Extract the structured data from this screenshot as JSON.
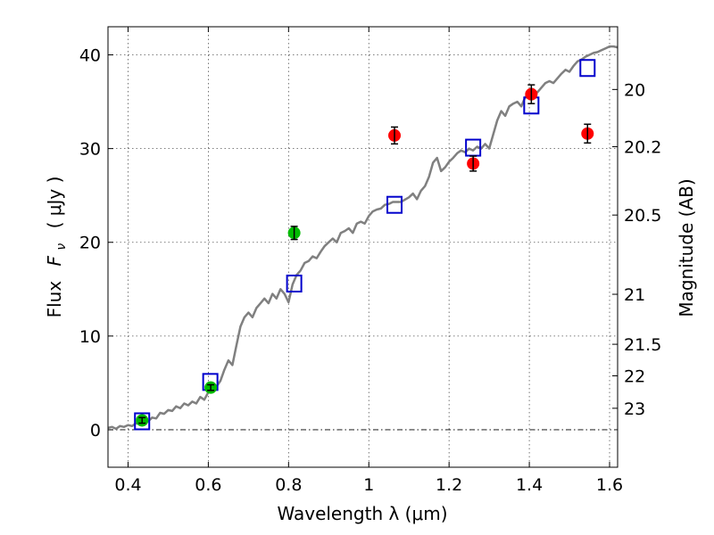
{
  "chart_data": {
    "type": "scatter",
    "xlabel": "Wavelength  λ (μm)",
    "ylabel_text": "Flux",
    "ylabel_symbol": "F",
    "ylabel_symbol_sub": "ν",
    "ylabel_unit": "( μJy )",
    "y2label": "Magnitude (AB)",
    "xlim": [
      0.35,
      1.62
    ],
    "ylim": [
      -4,
      43
    ],
    "grid": true,
    "x_ticks": [
      {
        "value": 0.4,
        "label": "0.4"
      },
      {
        "value": 0.6,
        "label": "0.6"
      },
      {
        "value": 0.8,
        "label": "0.8"
      },
      {
        "value": 1.0,
        "label": "1"
      },
      {
        "value": 1.2,
        "label": "1.2"
      },
      {
        "value": 1.4,
        "label": "1.4"
      },
      {
        "value": 1.6,
        "label": "1.6"
      }
    ],
    "y_ticks": [
      {
        "value": 0,
        "label": "0"
      },
      {
        "value": 10,
        "label": "10"
      },
      {
        "value": 20,
        "label": "20"
      },
      {
        "value": 30,
        "label": "30"
      },
      {
        "value": 40,
        "label": "40"
      }
    ],
    "y2_ticks": [
      {
        "mag": 20,
        "label": "20"
      },
      {
        "mag": 20.2,
        "label": "20.2"
      },
      {
        "mag": 20.5,
        "label": "20.5"
      },
      {
        "mag": 21,
        "label": "21"
      },
      {
        "mag": 21.5,
        "label": "21.5"
      },
      {
        "mag": 22,
        "label": "22"
      },
      {
        "mag": 23,
        "label": "23"
      }
    ],
    "colors": {
      "model": "#808080",
      "model_points": "#0000cc",
      "optical": "#00bb00",
      "nir": "#ff0000",
      "errorbar": "#000000"
    },
    "series": [
      {
        "name": "model_spectrum",
        "kind": "line",
        "points": [
          [
            0.35,
            0.2
          ],
          [
            0.36,
            0.3
          ],
          [
            0.37,
            0.1
          ],
          [
            0.38,
            0.4
          ],
          [
            0.39,
            0.3
          ],
          [
            0.4,
            0.5
          ],
          [
            0.41,
            0.4
          ],
          [
            0.42,
            0.7
          ],
          [
            0.43,
            0.6
          ],
          [
            0.44,
            1.0
          ],
          [
            0.45,
            0.9
          ],
          [
            0.46,
            1.3
          ],
          [
            0.47,
            1.2
          ],
          [
            0.48,
            1.8
          ],
          [
            0.49,
            1.7
          ],
          [
            0.5,
            2.1
          ],
          [
            0.51,
            2.0
          ],
          [
            0.52,
            2.5
          ],
          [
            0.53,
            2.3
          ],
          [
            0.54,
            2.8
          ],
          [
            0.55,
            2.6
          ],
          [
            0.56,
            3.0
          ],
          [
            0.57,
            2.8
          ],
          [
            0.58,
            3.5
          ],
          [
            0.59,
            3.2
          ],
          [
            0.6,
            4.0
          ],
          [
            0.61,
            4.3
          ],
          [
            0.62,
            4.6
          ],
          [
            0.63,
            5.2
          ],
          [
            0.64,
            6.4
          ],
          [
            0.65,
            7.4
          ],
          [
            0.66,
            6.9
          ],
          [
            0.67,
            9.0
          ],
          [
            0.68,
            11.0
          ],
          [
            0.69,
            12.0
          ],
          [
            0.7,
            12.5
          ],
          [
            0.71,
            12.0
          ],
          [
            0.72,
            13.0
          ],
          [
            0.73,
            13.5
          ],
          [
            0.74,
            14.0
          ],
          [
            0.75,
            13.5
          ],
          [
            0.76,
            14.5
          ],
          [
            0.77,
            14.0
          ],
          [
            0.78,
            15.0
          ],
          [
            0.79,
            14.5
          ],
          [
            0.8,
            13.6
          ],
          [
            0.81,
            15.5
          ],
          [
            0.82,
            16.5
          ],
          [
            0.83,
            17.0
          ],
          [
            0.84,
            17.8
          ],
          [
            0.85,
            18.0
          ],
          [
            0.86,
            18.5
          ],
          [
            0.87,
            18.3
          ],
          [
            0.88,
            19.0
          ],
          [
            0.89,
            19.6
          ],
          [
            0.9,
            20.0
          ],
          [
            0.91,
            20.4
          ],
          [
            0.92,
            20.0
          ],
          [
            0.93,
            21.0
          ],
          [
            0.94,
            21.2
          ],
          [
            0.95,
            21.5
          ],
          [
            0.96,
            21.0
          ],
          [
            0.97,
            22.0
          ],
          [
            0.98,
            22.2
          ],
          [
            0.99,
            22.0
          ],
          [
            1.0,
            22.8
          ],
          [
            1.01,
            23.3
          ],
          [
            1.02,
            23.5
          ],
          [
            1.03,
            23.6
          ],
          [
            1.04,
            24.0
          ],
          [
            1.05,
            24.1
          ],
          [
            1.06,
            24.3
          ],
          [
            1.08,
            24.3
          ],
          [
            1.1,
            24.8
          ],
          [
            1.11,
            25.2
          ],
          [
            1.12,
            24.6
          ],
          [
            1.13,
            25.5
          ],
          [
            1.14,
            26.0
          ],
          [
            1.15,
            27.0
          ],
          [
            1.16,
            28.5
          ],
          [
            1.17,
            29.0
          ],
          [
            1.18,
            27.6
          ],
          [
            1.19,
            28.0
          ],
          [
            1.2,
            28.6
          ],
          [
            1.21,
            29.0
          ],
          [
            1.22,
            29.5
          ],
          [
            1.23,
            29.8
          ],
          [
            1.24,
            29.6
          ],
          [
            1.25,
            30.0
          ],
          [
            1.26,
            29.8
          ],
          [
            1.27,
            30.2
          ],
          [
            1.28,
            30.0
          ],
          [
            1.29,
            30.5
          ],
          [
            1.3,
            30.0
          ],
          [
            1.31,
            31.5
          ],
          [
            1.32,
            33.0
          ],
          [
            1.33,
            34.0
          ],
          [
            1.34,
            33.5
          ],
          [
            1.35,
            34.5
          ],
          [
            1.36,
            34.8
          ],
          [
            1.37,
            35.0
          ],
          [
            1.38,
            34.5
          ],
          [
            1.39,
            35.5
          ],
          [
            1.4,
            35.8
          ],
          [
            1.41,
            36.2
          ],
          [
            1.42,
            36.0
          ],
          [
            1.43,
            36.5
          ],
          [
            1.44,
            37.0
          ],
          [
            1.45,
            37.2
          ],
          [
            1.46,
            37.0
          ],
          [
            1.47,
            37.5
          ],
          [
            1.48,
            38.0
          ],
          [
            1.49,
            38.4
          ],
          [
            1.5,
            38.2
          ],
          [
            1.51,
            38.8
          ],
          [
            1.52,
            39.3
          ],
          [
            1.53,
            39.5
          ],
          [
            1.54,
            39.8
          ],
          [
            1.55,
            40.0
          ],
          [
            1.56,
            40.2
          ],
          [
            1.57,
            40.3
          ],
          [
            1.58,
            40.5
          ],
          [
            1.59,
            40.7
          ],
          [
            1.6,
            40.9
          ],
          [
            1.61,
            40.9
          ],
          [
            1.62,
            40.8
          ]
        ]
      },
      {
        "name": "model_photometry",
        "kind": "open_square",
        "points": [
          {
            "x": 0.435,
            "y": 0.9
          },
          {
            "x": 0.605,
            "y": 5.1
          },
          {
            "x": 0.814,
            "y": 15.6
          },
          {
            "x": 1.064,
            "y": 24.0
          },
          {
            "x": 1.26,
            "y": 30.1
          },
          {
            "x": 1.405,
            "y": 34.6
          },
          {
            "x": 1.545,
            "y": 38.6
          }
        ]
      },
      {
        "name": "observed_optical",
        "kind": "filled_circle",
        "points": [
          {
            "x": 0.435,
            "y": 1.0,
            "err": 0.3
          },
          {
            "x": 0.606,
            "y": 4.5,
            "err": 0.3
          },
          {
            "x": 0.814,
            "y": 21.0,
            "err": 0.7
          }
        ]
      },
      {
        "name": "observed_nir",
        "kind": "filled_circle",
        "points": [
          {
            "x": 1.064,
            "y": 31.4,
            "err": 0.9
          },
          {
            "x": 1.26,
            "y": 28.4,
            "err": 0.8
          },
          {
            "x": 1.405,
            "y": 35.8,
            "err": 1.0
          },
          {
            "x": 1.545,
            "y": 31.6,
            "err": 1.0
          }
        ]
      }
    ]
  }
}
